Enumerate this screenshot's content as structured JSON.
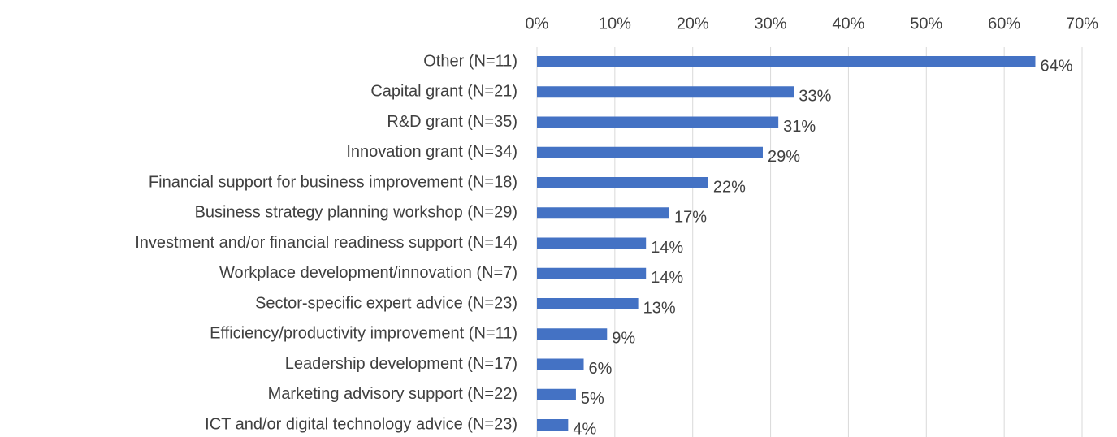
{
  "chart_data": {
    "type": "bar",
    "orientation": "horizontal",
    "categories": [
      "Other (N=11)",
      "Capital grant (N=21)",
      "R&D grant (N=35)",
      "Innovation grant (N=34)",
      "Financial support for business improvement (N=18)",
      "Business strategy planning workshop (N=29)",
      "Investment and/or financial readiness support (N=14)",
      "Workplace development/innovation (N=7)",
      "Sector-specific expert advice (N=23)",
      "Efficiency/productivity improvement (N=11)",
      "Leadership development (N=17)",
      "Marketing advisory support (N=22)",
      "ICT and/or digital technology advice (N=23)"
    ],
    "values": [
      64,
      33,
      31,
      29,
      22,
      17,
      14,
      14,
      13,
      9,
      6,
      5,
      4
    ],
    "value_labels": [
      "64%",
      "33%",
      "31%",
      "29%",
      "22%",
      "17%",
      "14%",
      "14%",
      "13%",
      "9%",
      "6%",
      "5%",
      "4%"
    ],
    "color": "#4472c4",
    "xlim": [
      0,
      70
    ],
    "xticks": [
      {
        "value": 0,
        "label": "0%"
      },
      {
        "value": 10,
        "label": "10%"
      },
      {
        "value": 20,
        "label": "20%"
      },
      {
        "value": 30,
        "label": "30%"
      },
      {
        "value": 40,
        "label": "40%"
      },
      {
        "value": 50,
        "label": "50%"
      },
      {
        "value": 60,
        "label": "60%"
      },
      {
        "value": 70,
        "label": "70%"
      }
    ],
    "grid": true
  }
}
